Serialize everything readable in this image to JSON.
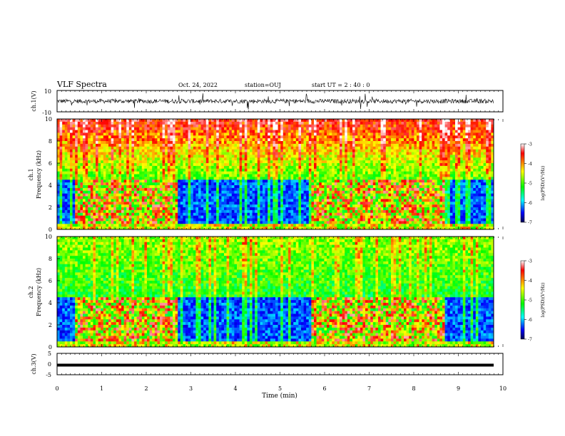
{
  "header": {
    "title": "VLF Spectra",
    "date": "Oct. 24, 2022",
    "station": "station=OUJ",
    "start": "start UT =  2 : 40 : 0"
  },
  "panels": {
    "ch1_volt": {
      "ylabel": "ch.1(V)",
      "ylim": [
        -10,
        10
      ],
      "ticks": [
        "10",
        "-10"
      ]
    },
    "ch1_spec": {
      "ylabel_ch": "ch.1",
      "ylabel": "Frequency (kHz)",
      "ticks": [
        "0",
        "2",
        "4",
        "6",
        "8",
        "10"
      ]
    },
    "ch2_spec": {
      "ylabel_ch": "ch.2",
      "ylabel": "Frequency (kHz)",
      "ticks": [
        "0",
        "2",
        "4",
        "6",
        "8",
        "10"
      ]
    },
    "ch3_volt": {
      "ylabel": "ch.3(V)",
      "ylim": [
        -5,
        5
      ],
      "ticks": [
        "5",
        "0",
        "-5"
      ]
    }
  },
  "colorbar": {
    "label": "log(PSD)(V²/Hz)",
    "ticks": [
      "-3",
      "-4",
      "-5",
      "-6",
      "-7"
    ],
    "colors": [
      "#ffffff",
      "#ff0000",
      "#ffff00",
      "#00ff00",
      "#00ffff",
      "#0000ff",
      "#000050"
    ]
  },
  "xaxis": {
    "label": "Time (min)",
    "ticks": [
      "0",
      "1",
      "2",
      "3",
      "4",
      "5",
      "6",
      "7",
      "8",
      "9",
      "10"
    ]
  },
  "chart_data": [
    {
      "type": "line",
      "name": "ch1-waveform",
      "xlim": [
        0,
        10
      ],
      "ylim": [
        -10,
        10
      ],
      "description_values": {
        "x_range_min": [
          0,
          9.8
        ],
        "y_typical_amplitude": [
          -3,
          3
        ]
      }
    },
    {
      "type": "heatmap",
      "name": "ch1-spectrogram",
      "xlim": [
        0,
        10
      ],
      "ylim_khz": [
        0,
        10
      ],
      "clim": [
        -7,
        -3
      ],
      "transmitter_on_intervals_min": [
        [
          0.4,
          2.7
        ],
        [
          5.7,
          8.7
        ]
      ],
      "band_top_khz": 4.6
    },
    {
      "type": "heatmap",
      "name": "ch2-spectrogram",
      "xlim": [
        0,
        10
      ],
      "ylim_khz": [
        0,
        10
      ],
      "clim": [
        -7,
        -3
      ],
      "transmitter_on_intervals_min": [
        [
          0.4,
          2.7
        ],
        [
          5.7,
          8.7
        ]
      ],
      "band_top_khz": 4.6
    },
    {
      "type": "line",
      "name": "ch3-waveform",
      "xlim": [
        0,
        10
      ],
      "ylim": [
        -5,
        5
      ],
      "value_v": -0.5
    }
  ]
}
